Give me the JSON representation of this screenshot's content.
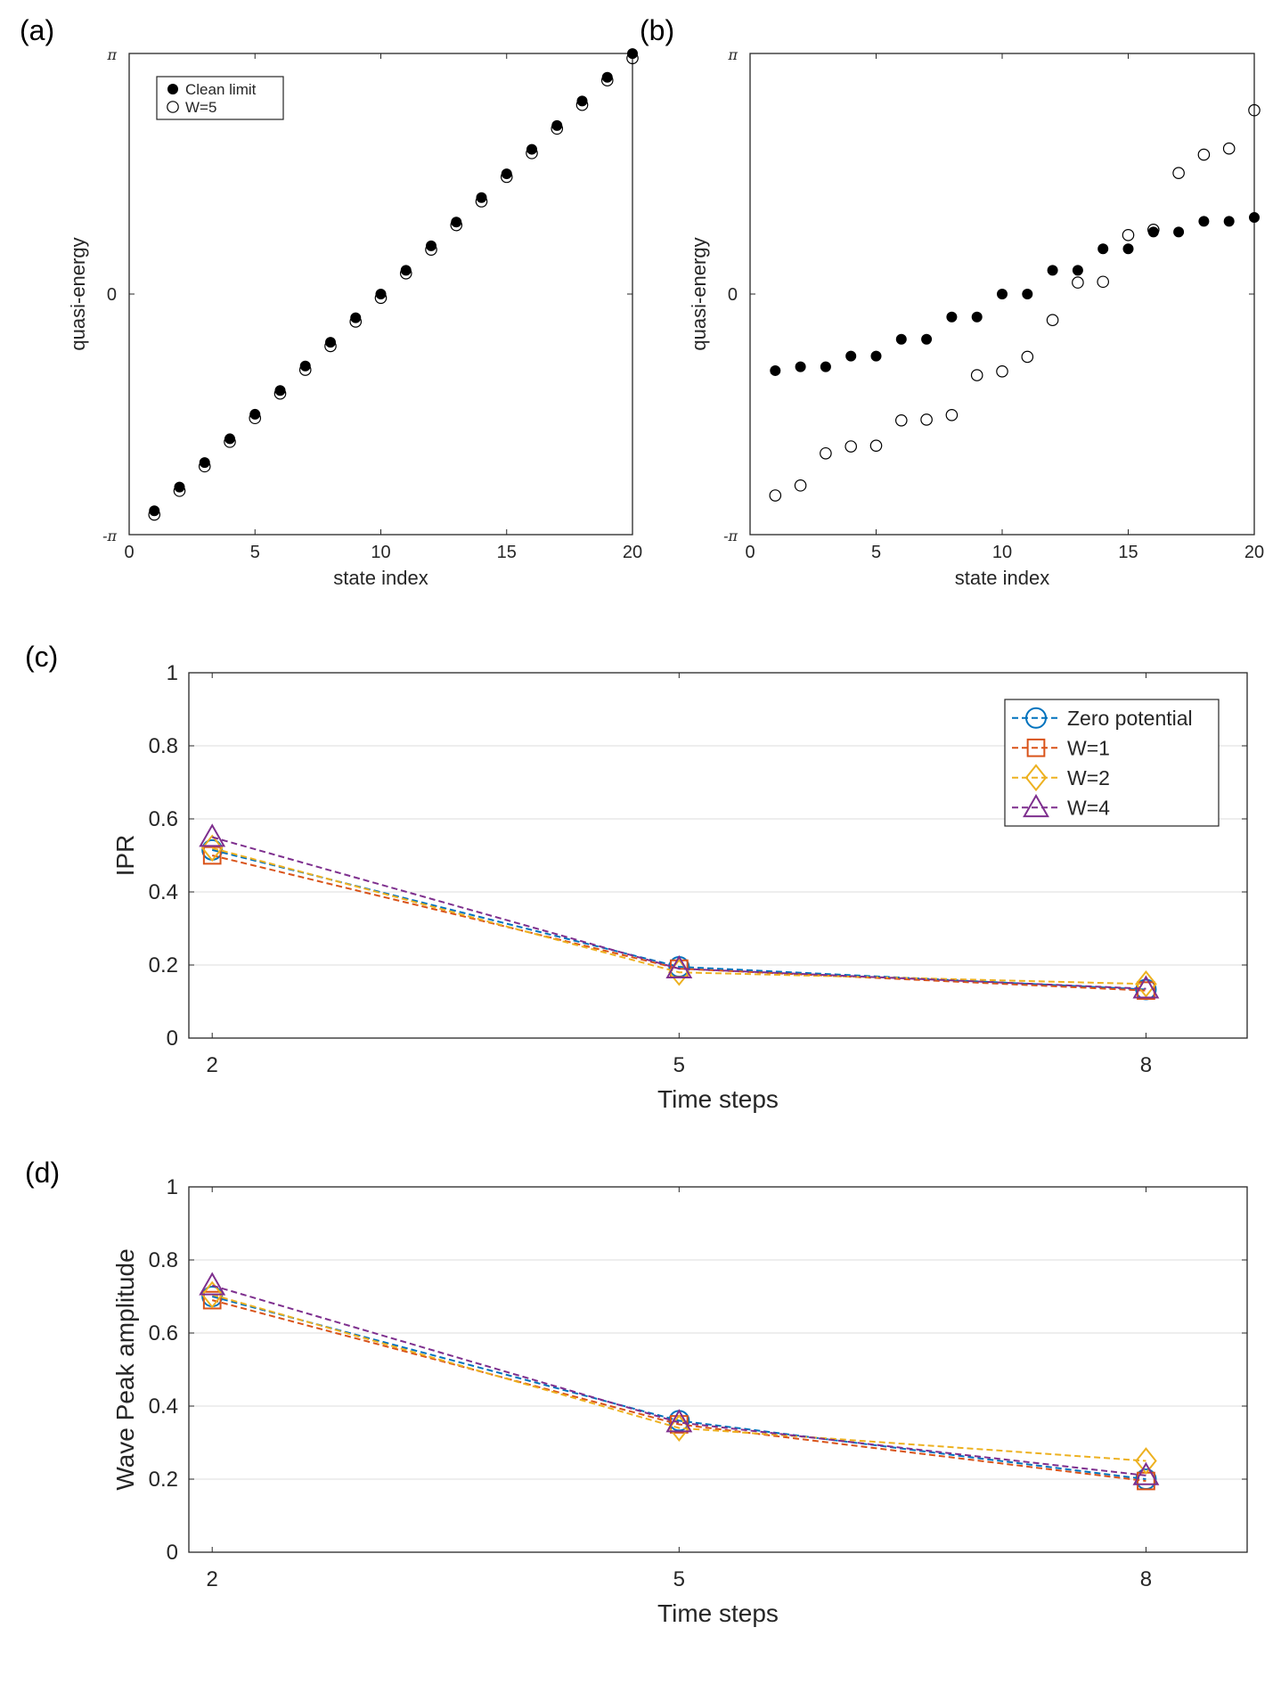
{
  "chart_data": [
    {
      "id": "a",
      "panel_label": "(a)",
      "type": "scatter",
      "xlabel": "state index",
      "ylabel": "quasi-energy",
      "xlim": [
        0,
        20
      ],
      "ylim": [
        -3.14159,
        3.14159
      ],
      "xticks": [
        0,
        5,
        10,
        15,
        20
      ],
      "xtick_labels": [
        "0",
        "5",
        "10",
        "15",
        "20"
      ],
      "yticks": [
        -3.14159,
        0,
        3.14159
      ],
      "ytick_labels": [
        "-π",
        "0",
        "π"
      ],
      "grid": false,
      "legend_position": "top-left",
      "series": [
        {
          "name": "Clean limit",
          "marker": "filled-circle",
          "x": [
            1,
            2,
            3,
            4,
            5,
            6,
            7,
            8,
            9,
            10,
            11,
            12,
            13,
            14,
            15,
            16,
            17,
            18,
            19,
            20
          ],
          "y": [
            -2.83,
            -2.52,
            -2.2,
            -1.89,
            -1.57,
            -1.26,
            -0.94,
            -0.63,
            -0.31,
            0.0,
            0.31,
            0.63,
            0.94,
            1.26,
            1.57,
            1.89,
            2.2,
            2.52,
            2.83,
            3.14
          ]
        },
        {
          "name": "W=5",
          "marker": "open-circle",
          "x": [
            1,
            2,
            3,
            4,
            5,
            6,
            7,
            8,
            9,
            10,
            11,
            12,
            13,
            14,
            15,
            16,
            17,
            18,
            19,
            20
          ],
          "y": [
            -2.88,
            -2.57,
            -2.25,
            -1.93,
            -1.62,
            -1.3,
            -0.99,
            -0.68,
            -0.36,
            -0.05,
            0.27,
            0.58,
            0.9,
            1.21,
            1.53,
            1.84,
            2.16,
            2.47,
            2.79,
            3.08
          ]
        }
      ]
    },
    {
      "id": "b",
      "panel_label": "(b)",
      "type": "scatter",
      "xlabel": "state index",
      "ylabel": "quasi-energy",
      "xlim": [
        0,
        20
      ],
      "ylim": [
        -3.14159,
        3.14159
      ],
      "xticks": [
        0,
        5,
        10,
        15,
        20
      ],
      "xtick_labels": [
        "0",
        "5",
        "10",
        "15",
        "20"
      ],
      "yticks": [
        -3.14159,
        0,
        3.14159
      ],
      "ytick_labels": [
        "-π",
        "0",
        "π"
      ],
      "grid": false,
      "series": [
        {
          "name": "Clean limit",
          "marker": "filled-circle",
          "x": [
            1,
            2,
            3,
            4,
            5,
            6,
            7,
            8,
            9,
            10,
            11,
            12,
            13,
            14,
            15,
            16,
            17,
            18,
            19,
            20
          ],
          "y": [
            -1.0,
            -0.95,
            -0.95,
            -0.81,
            -0.81,
            -0.59,
            -0.59,
            -0.3,
            -0.3,
            0.0,
            0.0,
            0.31,
            0.31,
            0.59,
            0.59,
            0.81,
            0.81,
            0.95,
            0.95,
            1.0
          ]
        },
        {
          "name": "W=5",
          "marker": "open-circle",
          "x": [
            1,
            2,
            3,
            4,
            5,
            6,
            7,
            8,
            9,
            10,
            11,
            12,
            13,
            14,
            15,
            16,
            17,
            18,
            19,
            20
          ],
          "y": [
            -2.63,
            -2.5,
            -2.08,
            -1.99,
            -1.98,
            -1.65,
            -1.64,
            -1.58,
            -1.06,
            -1.01,
            -0.82,
            -0.34,
            0.15,
            0.16,
            0.77,
            0.84,
            1.58,
            1.82,
            1.9,
            2.4
          ]
        }
      ]
    },
    {
      "id": "c",
      "panel_label": "(c)",
      "type": "line",
      "xlabel": "Time steps",
      "ylabel": "IPR",
      "xlim": [
        1.85,
        8.65
      ],
      "ylim": [
        0,
        1
      ],
      "xticks": [
        2,
        5,
        8
      ],
      "xtick_labels": [
        "2",
        "5",
        "8"
      ],
      "yticks": [
        0,
        0.2,
        0.4,
        0.6,
        0.8,
        1
      ],
      "ytick_labels": [
        "0",
        "0.2",
        "0.4",
        "0.6",
        "0.8",
        "1"
      ],
      "grid": true,
      "legend_position": "top-right",
      "categories": [
        2,
        5,
        8
      ],
      "series": [
        {
          "name": "Zero potential",
          "marker": "circle",
          "color": "#0072BD",
          "values": [
            0.515,
            0.195,
            0.133
          ]
        },
        {
          "name": "W=1",
          "marker": "square",
          "color": "#D95319",
          "values": [
            0.5,
            0.19,
            0.13
          ]
        },
        {
          "name": "W=2",
          "marker": "diamond",
          "color": "#EDB120",
          "values": [
            0.52,
            0.18,
            0.148
          ]
        },
        {
          "name": "W=4",
          "marker": "triangle",
          "color": "#7E2F8E",
          "values": [
            0.55,
            0.19,
            0.135
          ]
        }
      ]
    },
    {
      "id": "d",
      "panel_label": "(d)",
      "type": "line",
      "xlabel": "Time steps",
      "ylabel": "Wave Peak amplitude",
      "xlim": [
        1.85,
        8.65
      ],
      "ylim": [
        0,
        1
      ],
      "xticks": [
        2,
        5,
        8
      ],
      "xtick_labels": [
        "2",
        "5",
        "8"
      ],
      "yticks": [
        0,
        0.2,
        0.4,
        0.6,
        0.8,
        1
      ],
      "ytick_labels": [
        "0",
        "0.2",
        "0.4",
        "0.6",
        "0.8",
        "1"
      ],
      "grid": true,
      "categories": [
        2,
        5,
        8
      ],
      "series": [
        {
          "name": "Zero potential",
          "marker": "circle",
          "color": "#0072BD",
          "values": [
            0.7,
            0.36,
            0.2
          ]
        },
        {
          "name": "W=1",
          "marker": "square",
          "color": "#D95319",
          "values": [
            0.69,
            0.35,
            0.195
          ]
        },
        {
          "name": "W=2",
          "marker": "diamond",
          "color": "#EDB120",
          "values": [
            0.705,
            0.34,
            0.25
          ]
        },
        {
          "name": "W=4",
          "marker": "triangle",
          "color": "#7E2F8E",
          "values": [
            0.73,
            0.355,
            0.21
          ]
        }
      ]
    }
  ]
}
